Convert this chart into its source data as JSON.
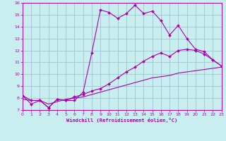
{
  "xlabel": "Windchill (Refroidissement éolien,°C)",
  "bg_color": "#c8eef0",
  "line_color": "#aa00aa",
  "grid_color": "#99bbcc",
  "xmin": 0,
  "xmax": 23,
  "ymin": 7,
  "ymax": 16,
  "xticks": [
    0,
    1,
    2,
    3,
    4,
    5,
    6,
    7,
    8,
    9,
    10,
    11,
    12,
    13,
    14,
    15,
    16,
    17,
    18,
    19,
    20,
    21,
    22,
    23
  ],
  "yticks": [
    7,
    8,
    9,
    10,
    11,
    12,
    13,
    14,
    15,
    16
  ],
  "line1_x": [
    0,
    1,
    2,
    3,
    4,
    5,
    6,
    7,
    8,
    9,
    10,
    11,
    12,
    13,
    14,
    15,
    16,
    17,
    18,
    19,
    20,
    21,
    22,
    23
  ],
  "line1_y": [
    8.2,
    7.5,
    7.8,
    7.2,
    7.9,
    7.8,
    7.8,
    8.5,
    11.8,
    15.4,
    15.2,
    14.7,
    15.1,
    15.8,
    15.1,
    15.3,
    14.5,
    13.3,
    14.1,
    13.0,
    12.1,
    11.9,
    11.2,
    10.7
  ],
  "line2_x": [
    0,
    1,
    2,
    3,
    4,
    5,
    6,
    7,
    8,
    9,
    10,
    11,
    12,
    13,
    14,
    15,
    16,
    17,
    18,
    19,
    20,
    21,
    22,
    23
  ],
  "line2_y": [
    8.2,
    7.8,
    7.8,
    7.2,
    7.9,
    7.8,
    8.1,
    8.3,
    8.6,
    8.8,
    9.2,
    9.7,
    10.2,
    10.6,
    11.1,
    11.5,
    11.8,
    11.5,
    12.0,
    12.1,
    12.0,
    11.7,
    11.2,
    10.7
  ],
  "line3_x": [
    0,
    1,
    2,
    3,
    4,
    5,
    6,
    7,
    8,
    9,
    10,
    11,
    12,
    13,
    14,
    15,
    16,
    17,
    18,
    19,
    20,
    21,
    22,
    23
  ],
  "line3_y": [
    7.9,
    7.8,
    7.8,
    7.5,
    7.7,
    7.9,
    8.0,
    8.1,
    8.3,
    8.5,
    8.7,
    8.9,
    9.1,
    9.3,
    9.5,
    9.7,
    9.8,
    9.9,
    10.1,
    10.2,
    10.3,
    10.4,
    10.5,
    10.6
  ]
}
